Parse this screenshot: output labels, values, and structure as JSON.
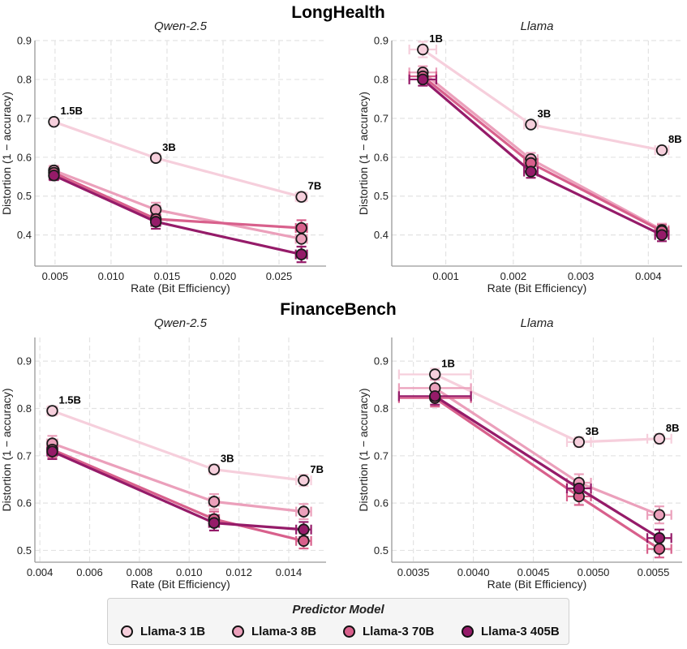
{
  "sections": [
    {
      "title": "LongHealth"
    },
    {
      "title": "FinanceBench"
    }
  ],
  "colors": {
    "Llama-3 1B": "#f6cfdc",
    "Llama-3 8B": "#eba0bb",
    "Llama-3 70B": "#d8608c",
    "Llama-3 405B": "#951b69"
  },
  "legend": {
    "title": "Predictor Model",
    "items": [
      "Llama-3 1B",
      "Llama-3 8B",
      "Llama-3 70B",
      "Llama-3 405B"
    ]
  },
  "chart_data": [
    {
      "type": "line",
      "section": "LongHealth",
      "title": "Qwen-2.5",
      "xlabel": "Rate (Bit Efficiency)",
      "ylabel": "Distortion (1 − accuracy)",
      "xlim": [
        0.0032,
        0.0292
      ],
      "ylim": [
        0.32,
        0.9
      ],
      "xticks": [
        0.005,
        0.01,
        0.015,
        0.02,
        0.025
      ],
      "xticklabels": [
        "0.005",
        "0.010",
        "0.015",
        "0.020",
        "0.025"
      ],
      "yticks": [
        0.4,
        0.5,
        0.6,
        0.7,
        0.8,
        0.9
      ],
      "yticklabels": [
        "0.4",
        "0.5",
        "0.6",
        "0.7",
        "0.8",
        "0.9"
      ],
      "x": [
        0.0049,
        0.014,
        0.027
      ],
      "point_labels": [
        "1.5B",
        "3B",
        "7B"
      ],
      "series": [
        {
          "name": "Llama-3 1B",
          "values": [
            0.691,
            0.598,
            0.498
          ],
          "xerr": [
            0.0003,
            0.0004,
            0.0005
          ],
          "yerr": [
            0.008,
            0.008,
            0.012
          ]
        },
        {
          "name": "Llama-3 8B",
          "values": [
            0.566,
            0.465,
            0.39
          ],
          "xerr": [
            0.0004,
            0.0004,
            0.0005
          ],
          "yerr": [
            0.012,
            0.018,
            0.02
          ]
        },
        {
          "name": "Llama-3 70B",
          "values": [
            0.56,
            0.441,
            0.418
          ],
          "xerr": [
            0.0004,
            0.0004,
            0.0005
          ],
          "yerr": [
            0.012,
            0.018,
            0.02
          ]
        },
        {
          "name": "Llama-3 405B",
          "values": [
            0.553,
            0.434,
            0.35
          ],
          "xerr": [
            0.0004,
            0.0004,
            0.0005
          ],
          "yerr": [
            0.012,
            0.018,
            0.02
          ]
        }
      ]
    },
    {
      "type": "line",
      "section": "LongHealth",
      "title": "Llama",
      "xlabel": "Rate (Bit Efficiency)",
      "ylabel": "Distortion (1 − accuracy)",
      "xlim": [
        0.0002,
        0.0045
      ],
      "ylim": [
        0.32,
        0.9
      ],
      "xticks": [
        0.001,
        0.002,
        0.003,
        0.004
      ],
      "xticklabels": [
        "0.001",
        "0.002",
        "0.003",
        "0.004"
      ],
      "yticks": [
        0.4,
        0.5,
        0.6,
        0.7,
        0.8,
        0.9
      ],
      "yticklabels": [
        "0.4",
        "0.5",
        "0.6",
        "0.7",
        "0.8",
        "0.9"
      ],
      "x": [
        0.00066,
        0.00226,
        0.0042
      ],
      "point_labels": [
        "1B",
        "3B",
        "8B"
      ],
      "series": [
        {
          "name": "Llama-3 1B",
          "values": [
            0.877,
            0.684,
            0.618
          ],
          "xerr": [
            0.0002,
            0.0001,
            0.0001
          ],
          "yerr": [
            0.02,
            0.008,
            0.01
          ]
        },
        {
          "name": "Llama-3 8B",
          "values": [
            0.818,
            0.595,
            0.413
          ],
          "xerr": [
            0.0002,
            0.0001,
            0.0001
          ],
          "yerr": [
            0.016,
            0.016,
            0.016
          ]
        },
        {
          "name": "Llama-3 70B",
          "values": [
            0.808,
            0.585,
            0.41
          ],
          "xerr": [
            0.0002,
            0.0001,
            0.0001
          ],
          "yerr": [
            0.016,
            0.016,
            0.016
          ]
        },
        {
          "name": "Llama-3 405B",
          "values": [
            0.8,
            0.563,
            0.4
          ],
          "xerr": [
            0.0002,
            0.0001,
            0.0001
          ],
          "yerr": [
            0.016,
            0.016,
            0.016
          ]
        }
      ]
    },
    {
      "type": "line",
      "section": "FinanceBench",
      "title": "Qwen-2.5",
      "xlabel": "Rate (Bit Efficiency)",
      "ylabel": "Distortion (1 − accuracy)",
      "xlim": [
        0.0038,
        0.0155
      ],
      "ylim": [
        0.475,
        0.95
      ],
      "xticks": [
        0.004,
        0.006,
        0.008,
        0.01,
        0.012,
        0.014
      ],
      "xticklabels": [
        "0.004",
        "0.006",
        "0.008",
        "0.010",
        "0.012",
        "0.014"
      ],
      "yticks": [
        0.5,
        0.6,
        0.7,
        0.8,
        0.9
      ],
      "yticklabels": [
        "0.5",
        "0.6",
        "0.7",
        "0.8",
        "0.9"
      ],
      "x": [
        0.0045,
        0.011,
        0.0146
      ],
      "point_labels": [
        "1.5B",
        "3B",
        "7B"
      ],
      "series": [
        {
          "name": "Llama-3 1B",
          "values": [
            0.795,
            0.671,
            0.648
          ],
          "xerr": [
            0.0002,
            0.0002,
            0.0003
          ],
          "yerr": [
            0.01,
            0.01,
            0.012
          ]
        },
        {
          "name": "Llama-3 8B",
          "values": [
            0.726,
            0.603,
            0.582
          ],
          "xerr": [
            0.0002,
            0.0002,
            0.0003
          ],
          "yerr": [
            0.016,
            0.016,
            0.016
          ]
        },
        {
          "name": "Llama-3 70B",
          "values": [
            0.713,
            0.566,
            0.52
          ],
          "xerr": [
            0.0002,
            0.0002,
            0.0003
          ],
          "yerr": [
            0.016,
            0.016,
            0.016
          ]
        },
        {
          "name": "Llama-3 405B",
          "values": [
            0.709,
            0.558,
            0.544
          ],
          "xerr": [
            0.0002,
            0.0002,
            0.0003
          ],
          "yerr": [
            0.016,
            0.016,
            0.016
          ]
        }
      ]
    },
    {
      "type": "line",
      "section": "FinanceBench",
      "title": "Llama",
      "xlabel": "Rate (Bit Efficiency)",
      "ylabel": "Distortion (1 − accuracy)",
      "xlim": [
        0.00332,
        0.00574
      ],
      "ylim": [
        0.475,
        0.95
      ],
      "xticks": [
        0.0035,
        0.004,
        0.0045,
        0.005,
        0.0055
      ],
      "xticklabels": [
        "0.0035",
        "0.0040",
        "0.0045",
        "0.0050",
        "0.0055"
      ],
      "yticks": [
        0.5,
        0.6,
        0.7,
        0.8,
        0.9
      ],
      "yticklabels": [
        "0.5",
        "0.6",
        "0.7",
        "0.8",
        "0.9"
      ],
      "x": [
        0.00368,
        0.00488,
        0.00555
      ],
      "point_labels": [
        "1B",
        "3B",
        "8B"
      ],
      "series": [
        {
          "name": "Llama-3 1B",
          "values": [
            0.872,
            0.729,
            0.736
          ],
          "xerr": [
            0.0003,
            0.0001,
            0.0001
          ],
          "yerr": [
            0.012,
            0.01,
            0.01
          ]
        },
        {
          "name": "Llama-3 8B",
          "values": [
            0.843,
            0.643,
            0.575
          ],
          "xerr": [
            0.0003,
            0.0001,
            0.0001
          ],
          "yerr": [
            0.018,
            0.018,
            0.018
          ]
        },
        {
          "name": "Llama-3 70B",
          "values": [
            0.822,
            0.614,
            0.503
          ],
          "xerr": [
            0.0003,
            0.0001,
            0.0001
          ],
          "yerr": [
            0.018,
            0.018,
            0.018
          ]
        },
        {
          "name": "Llama-3 405B",
          "values": [
            0.826,
            0.631,
            0.526
          ],
          "xerr": [
            0.0003,
            0.0001,
            0.0001
          ],
          "yerr": [
            0.018,
            0.018,
            0.018
          ]
        }
      ]
    }
  ]
}
